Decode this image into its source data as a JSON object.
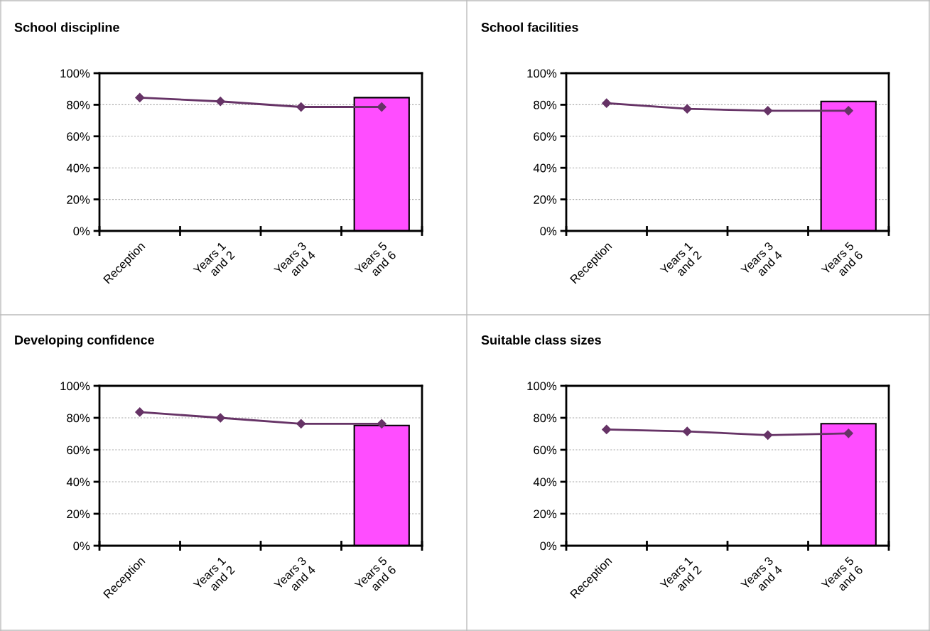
{
  "chart_data": [
    {
      "type": "bar",
      "title": "School discipline",
      "categories": [
        "Reception",
        "Years 1\nand 2",
        "Years 3\nand 4",
        "Years 5\nand 6"
      ],
      "ylim": [
        0,
        100
      ],
      "yticks": [
        {
          "value": 0,
          "label": "0%"
        },
        {
          "value": 20,
          "label": "20%"
        },
        {
          "value": 40,
          "label": "40%"
        },
        {
          "value": 60,
          "label": "60%"
        },
        {
          "value": 80,
          "label": "80%"
        },
        {
          "value": 100,
          "label": "100%"
        }
      ],
      "grid": "y",
      "legend": false,
      "series": [
        {
          "color": "#ff4dff",
          "values": [
            null,
            null,
            null,
            84.5
          ]
        },
        {
          "type": "line",
          "color": "#663366",
          "marker": "diamond",
          "values": [
            84.5,
            82.1,
            78.6,
            78.6
          ]
        }
      ]
    },
    {
      "type": "bar",
      "title": "School facilities",
      "categories": [
        "Reception",
        "Years 1\nand 2",
        "Years 3\nand 4",
        "Years 5\nand 6"
      ],
      "ylim": [
        0,
        100
      ],
      "yticks": [
        {
          "value": 0,
          "label": "0%"
        },
        {
          "value": 20,
          "label": "20%"
        },
        {
          "value": 40,
          "label": "40%"
        },
        {
          "value": 60,
          "label": "60%"
        },
        {
          "value": 80,
          "label": "80%"
        },
        {
          "value": 100,
          "label": "100%"
        }
      ],
      "grid": "y",
      "legend": false,
      "series": [
        {
          "color": "#ff4dff",
          "values": [
            null,
            null,
            null,
            82.1
          ]
        },
        {
          "type": "line",
          "color": "#663366",
          "marker": "diamond",
          "values": [
            81.0,
            77.4,
            76.2,
            76.2
          ]
        }
      ]
    },
    {
      "type": "bar",
      "title": "Developing confidence",
      "categories": [
        "Reception",
        "Years 1\nand 2",
        "Years 3\nand 4",
        "Years 5\nand 6"
      ],
      "ylim": [
        0,
        100
      ],
      "yticks": [
        {
          "value": 0,
          "label": "0%"
        },
        {
          "value": 20,
          "label": "20%"
        },
        {
          "value": 40,
          "label": "40%"
        },
        {
          "value": 60,
          "label": "60%"
        },
        {
          "value": 80,
          "label": "80%"
        },
        {
          "value": 100,
          "label": "100%"
        }
      ],
      "grid": "y",
      "legend": false,
      "series": [
        {
          "color": "#ff4dff",
          "values": [
            null,
            null,
            null,
            75.2
          ]
        },
        {
          "type": "line",
          "color": "#663366",
          "marker": "diamond",
          "values": [
            83.6,
            80.0,
            76.3,
            76.3
          ]
        }
      ]
    },
    {
      "type": "bar",
      "title": "Suitable class sizes",
      "categories": [
        "Reception",
        "Years 1\nand 2",
        "Years 3\nand 4",
        "Years 5\nand 6"
      ],
      "ylim": [
        0,
        100
      ],
      "yticks": [
        {
          "value": 0,
          "label": "0%"
        },
        {
          "value": 20,
          "label": "20%"
        },
        {
          "value": 40,
          "label": "40%"
        },
        {
          "value": 60,
          "label": "60%"
        },
        {
          "value": 80,
          "label": "80%"
        },
        {
          "value": 100,
          "label": "100%"
        }
      ],
      "grid": "y",
      "legend": false,
      "series": [
        {
          "color": "#ff4dff",
          "values": [
            null,
            null,
            null,
            76.3
          ]
        },
        {
          "type": "line",
          "color": "#663366",
          "marker": "diamond",
          "values": [
            72.7,
            71.5,
            69.2,
            70.3
          ]
        }
      ]
    }
  ]
}
